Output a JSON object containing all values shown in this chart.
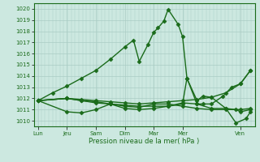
{
  "title": "Pression niveau de la mer( hPa )",
  "ylabel_vals": [
    1010,
    1011,
    1012,
    1013,
    1014,
    1015,
    1016,
    1017,
    1018,
    1019,
    1020
  ],
  "ylim": [
    1009.5,
    1020.5
  ],
  "background_color": "#cce8e0",
  "grid_color": "#aaccc4",
  "line_color": "#1a6b1a",
  "xtick_labels": [
    "Lun",
    "Jeu",
    "Sam",
    "Dim",
    "Mar",
    "Mer",
    "Ven"
  ],
  "xtick_positions": [
    0,
    1,
    2,
    3,
    4,
    5,
    7
  ],
  "xlim": [
    -0.15,
    7.5
  ],
  "lines": [
    {
      "x": [
        0,
        0.5,
        1.0,
        1.5,
        2.0,
        2.5,
        3.0,
        3.3,
        3.5,
        3.8,
        4.0,
        4.15,
        4.35,
        4.5,
        4.85,
        5.0,
        5.15,
        5.5,
        5.7,
        6.0,
        6.4,
        6.7,
        7.0,
        7.35
      ],
      "y": [
        1011.8,
        1012.5,
        1013.1,
        1013.8,
        1014.5,
        1015.5,
        1016.6,
        1017.2,
        1015.3,
        1016.8,
        1017.9,
        1018.3,
        1018.9,
        1019.95,
        1018.6,
        1017.5,
        1013.8,
        1011.5,
        1011.5,
        1011.5,
        1012.2,
        1013.0,
        1013.3,
        1014.5
      ]
    },
    {
      "x": [
        0,
        1.0,
        1.5,
        2.0,
        2.5,
        3.0,
        3.5,
        4.0,
        4.5,
        5.0,
        5.5,
        6.0,
        6.5,
        7.0,
        7.35
      ],
      "y": [
        1011.8,
        1012.0,
        1011.8,
        1011.7,
        1011.5,
        1011.3,
        1011.2,
        1011.5,
        1011.5,
        1011.3,
        1011.1,
        1011.0,
        1011.0,
        1011.0,
        1011.1
      ]
    },
    {
      "x": [
        0,
        1.0,
        1.5,
        2.0,
        2.5,
        3.0,
        3.5,
        4.0,
        4.5,
        5.0,
        5.5,
        6.0,
        6.5,
        7.0,
        7.35
      ],
      "y": [
        1011.8,
        1012.0,
        1011.9,
        1011.8,
        1011.7,
        1011.6,
        1011.5,
        1011.6,
        1011.7,
        1011.8,
        1011.9,
        1012.1,
        1012.5,
        1013.3,
        1014.5
      ]
    },
    {
      "x": [
        0,
        1.0,
        1.5,
        2.0,
        2.5,
        3.0,
        3.5,
        4.0,
        4.5,
        5.0,
        5.15,
        5.5,
        5.7,
        6.0,
        6.5,
        6.85,
        7.0,
        7.35
      ],
      "y": [
        1011.8,
        1012.0,
        1011.8,
        1011.6,
        1011.5,
        1011.4,
        1011.3,
        1011.3,
        1011.3,
        1011.5,
        1013.8,
        1011.8,
        1012.2,
        1012.1,
        1011.1,
        1011.0,
        1010.8,
        1011.0
      ]
    },
    {
      "x": [
        0,
        1.0,
        1.5,
        2.0,
        2.5,
        3.0,
        3.5,
        4.0,
        4.5,
        5.0,
        5.5,
        6.0,
        6.5,
        6.85,
        7.2,
        7.35
      ],
      "y": [
        1011.8,
        1010.8,
        1010.7,
        1011.0,
        1011.5,
        1011.1,
        1011.0,
        1011.1,
        1011.3,
        1011.6,
        1011.5,
        1011.1,
        1011.1,
        1009.8,
        1010.2,
        1010.8
      ]
    }
  ],
  "marker": "D",
  "markersize": 2.5,
  "linewidth": 1.0
}
